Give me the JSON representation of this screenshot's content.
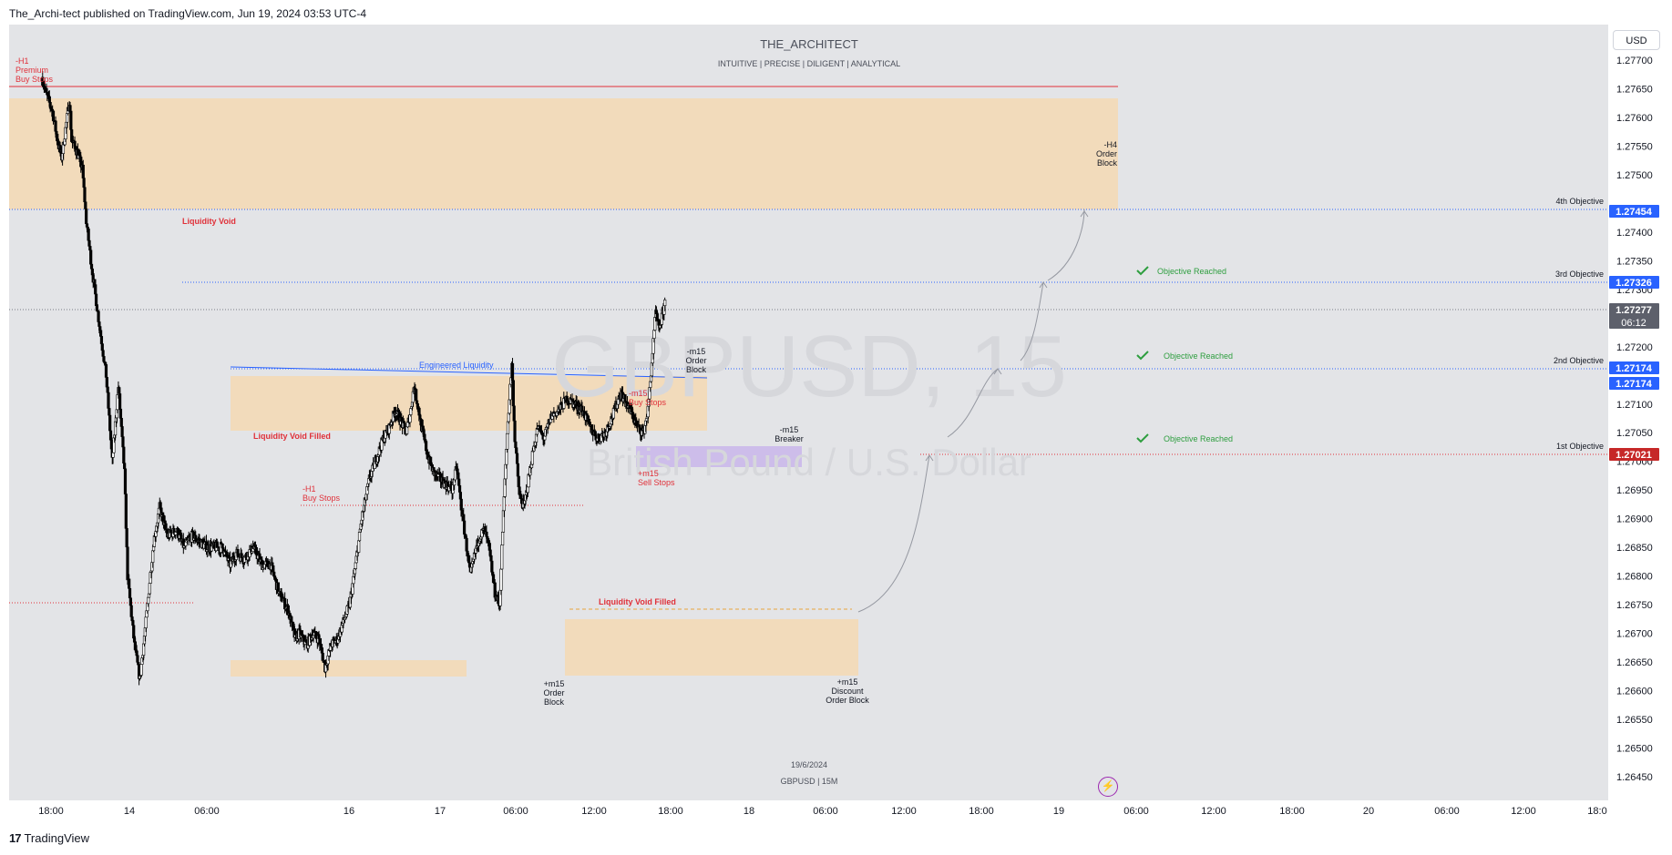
{
  "header": {
    "published": "The_Archi-tect published on TradingView.com, Jun 19, 2024 03:53 UTC-4"
  },
  "watermark": {
    "author": "THE_ARCHITECT",
    "tagline": "INTUITIVE | PRECISE | DILIGENT | ANALYTICAL",
    "symbol": "GBPUSD, 15",
    "description": "British Pound / U.S. Dollar",
    "bottom_date": "19/6/2024",
    "bottom_symbol": "GBPUSD | 15M"
  },
  "currency": "USD",
  "footer": {
    "brand": "TradingView"
  },
  "colors": {
    "up": "#ffffff",
    "down": "#000000",
    "zone": "#f4d9b3",
    "zone_purple": "#c9b6ea",
    "red": "#e0313a",
    "blue": "#2962ff",
    "green": "#2e9e3f",
    "grey_line": "#787b86"
  },
  "chart_data": {
    "type": "candlestick",
    "symbol": "GBPUSD",
    "timeframe": "15",
    "ylim": [
      1.2642,
      1.2774
    ],
    "y_ticks": [
      "1.27700",
      "1.27650",
      "1.27600",
      "1.27550",
      "1.27500",
      "1.27400",
      "1.27350",
      "1.27300",
      "1.27200",
      "1.27100",
      "1.27050",
      "1.27000",
      "1.26950",
      "1.26900",
      "1.26850",
      "1.26800",
      "1.26750",
      "1.26700",
      "1.26650",
      "1.26600",
      "1.26550",
      "1.26500",
      "1.26450"
    ],
    "x_ticks": [
      "18:00",
      "14",
      "06:00",
      "16",
      "17",
      "06:00",
      "12:00",
      "18:00",
      "18",
      "06:00",
      "12:00",
      "18:00",
      "19",
      "06:00",
      "12:00",
      "18:00",
      "20",
      "06:00",
      "12:00",
      "18:0"
    ],
    "price_badges": [
      {
        "value": "1.27454",
        "color": "#2962ff"
      },
      {
        "value": "1.27326",
        "color": "#2962ff"
      },
      {
        "value": "1.27277",
        "sub": "06:12",
        "color": "#5d606b"
      },
      {
        "value": "1.27174",
        "color": "#2962ff"
      },
      {
        "value": "1.27174",
        "color": "#2962ff"
      },
      {
        "value": "1.27021",
        "color": "#c62828"
      }
    ],
    "objectives": [
      {
        "label": "4th Objective",
        "price": 1.27454
      },
      {
        "label": "3rd Objective",
        "price": 1.27326,
        "status": "Objective Reached"
      },
      {
        "label": "2nd Objective",
        "price": 1.27174,
        "status": "Objective Reached"
      },
      {
        "label": "1st Objective",
        "price": 1.27021,
        "status": "Objective Reached"
      }
    ],
    "annotations": {
      "h1_premium": [
        "-H1",
        "Premium",
        "Buy Stops"
      ],
      "liquidity_void": "Liquidity Void",
      "h4_order_block": [
        "-H4",
        "Order",
        "Block"
      ],
      "engineered_liquidity": "Engineered Liquidity",
      "liquidity_void_filled_1": "Liquidity Void Filled",
      "liquidity_void_filled_2": "Liquidity Void Filled",
      "h1_buy_stops": [
        "-H1",
        "Buy Stops"
      ],
      "m15_order_block_top": [
        "-m15",
        "Order",
        "Block"
      ],
      "m15_buy_stops": [
        "-m15",
        "Buy Stops"
      ],
      "m15_sell_stops": [
        "+m15",
        "Sell Stops"
      ],
      "m15_breaker": [
        "-m15",
        "Breaker"
      ],
      "m15_order_block_bottom": [
        "+m15",
        "Order",
        "Block"
      ],
      "m15_discount_ob": [
        "+m15",
        "Discount",
        "Order Block"
      ]
    },
    "series": [
      {
        "name": "GBPUSD",
        "anchors": [
          [
            13.64,
            1.2767
          ],
          [
            13.7,
            1.2764
          ],
          [
            13.78,
            1.2761
          ],
          [
            13.85,
            1.27555
          ],
          [
            13.9,
            1.2753
          ],
          [
            13.97,
            1.276
          ],
          [
            14.0,
            1.2763
          ],
          [
            14.03,
            1.2756
          ],
          [
            14.1,
            1.2754
          ],
          [
            14.17,
            1.2751
          ],
          [
            14.22,
            1.2742
          ],
          [
            14.3,
            1.2733
          ],
          [
            14.38,
            1.2725
          ],
          [
            14.48,
            1.2715
          ],
          [
            14.56,
            1.27
          ],
          [
            14.64,
            1.2713
          ],
          [
            14.72,
            1.2698
          ],
          [
            14.76,
            1.268
          ],
          [
            14.85,
            1.2668
          ],
          [
            14.92,
            1.2662
          ],
          [
            15.0,
            1.2672
          ],
          [
            15.1,
            1.2686
          ],
          [
            15.18,
            1.2692
          ],
          [
            15.28,
            1.2687
          ],
          [
            15.4,
            1.2688
          ],
          [
            15.5,
            1.2685
          ],
          [
            15.6,
            1.2687
          ],
          [
            15.7,
            1.2686
          ],
          [
            15.8,
            1.2685
          ],
          [
            15.9,
            1.2685
          ],
          [
            16.0,
            1.2685
          ],
          [
            16.1,
            1.2682
          ],
          [
            16.18,
            1.2684
          ],
          [
            16.28,
            1.2683
          ],
          [
            16.4,
            1.2685
          ],
          [
            16.52,
            1.2682
          ],
          [
            16.63,
            1.2682
          ],
          [
            16.74,
            1.2677
          ],
          [
            16.86,
            1.2674
          ],
          [
            16.95,
            1.2669
          ],
          [
            17.0,
            1.267
          ],
          [
            17.1,
            1.2668
          ],
          [
            17.18,
            1.267
          ],
          [
            17.26,
            1.2669
          ],
          [
            17.34,
            1.2664
          ],
          [
            17.42,
            1.2668
          ],
          [
            17.5,
            1.2669
          ],
          [
            17.58,
            1.2672
          ],
          [
            17.66,
            1.2675
          ],
          [
            17.74,
            1.2682
          ],
          [
            17.82,
            1.269
          ],
          [
            17.92,
            1.2697
          ],
          [
            18.0,
            1.27
          ],
          [
            18.1,
            1.2704
          ],
          [
            18.18,
            1.2706
          ],
          [
            18.26,
            1.2709
          ],
          [
            18.33,
            1.2707
          ],
          [
            18.4,
            1.2705
          ],
          [
            18.46,
            1.2709
          ],
          [
            18.5,
            1.2713
          ],
          [
            18.55,
            1.271
          ],
          [
            18.6,
            1.2706
          ],
          [
            18.68,
            1.2701
          ],
          [
            18.76,
            1.2698
          ],
          [
            18.84,
            1.2697
          ],
          [
            18.92,
            1.2696
          ],
          [
            19.0,
            1.2695
          ],
          [
            19.06,
            1.2699
          ],
          [
            19.12,
            1.2692
          ],
          [
            19.18,
            1.2686
          ],
          [
            19.24,
            1.268
          ],
          [
            19.3,
            1.2684
          ],
          [
            19.36,
            1.2687
          ],
          [
            19.42,
            1.2688
          ],
          [
            19.48,
            1.2685
          ],
          [
            19.56,
            1.2677
          ],
          [
            19.62,
            1.2675
          ],
          [
            19.66,
            1.2688
          ],
          [
            19.72,
            1.2705
          ],
          [
            19.78,
            1.2717
          ],
          [
            19.82,
            1.2704
          ],
          [
            19.88,
            1.2694
          ],
          [
            19.94,
            1.2692
          ],
          [
            20.0,
            1.2697
          ],
          [
            20.06,
            1.2702
          ],
          [
            20.12,
            1.2706
          ],
          [
            20.2,
            1.2704
          ],
          [
            20.3,
            1.2708
          ],
          [
            20.4,
            1.2709
          ],
          [
            20.5,
            1.2711
          ],
          [
            20.6,
            1.271
          ],
          [
            20.7,
            1.2709
          ],
          [
            20.8,
            1.2706
          ],
          [
            20.9,
            1.2704
          ],
          [
            21.0,
            1.2705
          ],
          [
            21.1,
            1.2708
          ],
          [
            21.2,
            1.2712
          ],
          [
            21.28,
            1.271
          ],
          [
            21.36,
            1.2708
          ],
          [
            21.42,
            1.2706
          ],
          [
            21.5,
            1.2705
          ],
          [
            21.56,
            1.2709
          ],
          [
            21.62,
            1.2719
          ],
          [
            21.66,
            1.2726
          ],
          [
            21.7,
            1.2723
          ],
          [
            21.74,
            1.2725
          ],
          [
            21.78,
            1.27277
          ]
        ]
      }
    ],
    "curves": [
      "arrow from +m15 discount OB to 1st objective",
      "arrow to 2nd objective",
      "arrow to 3rd objective",
      "arrow to 4th objective"
    ]
  }
}
